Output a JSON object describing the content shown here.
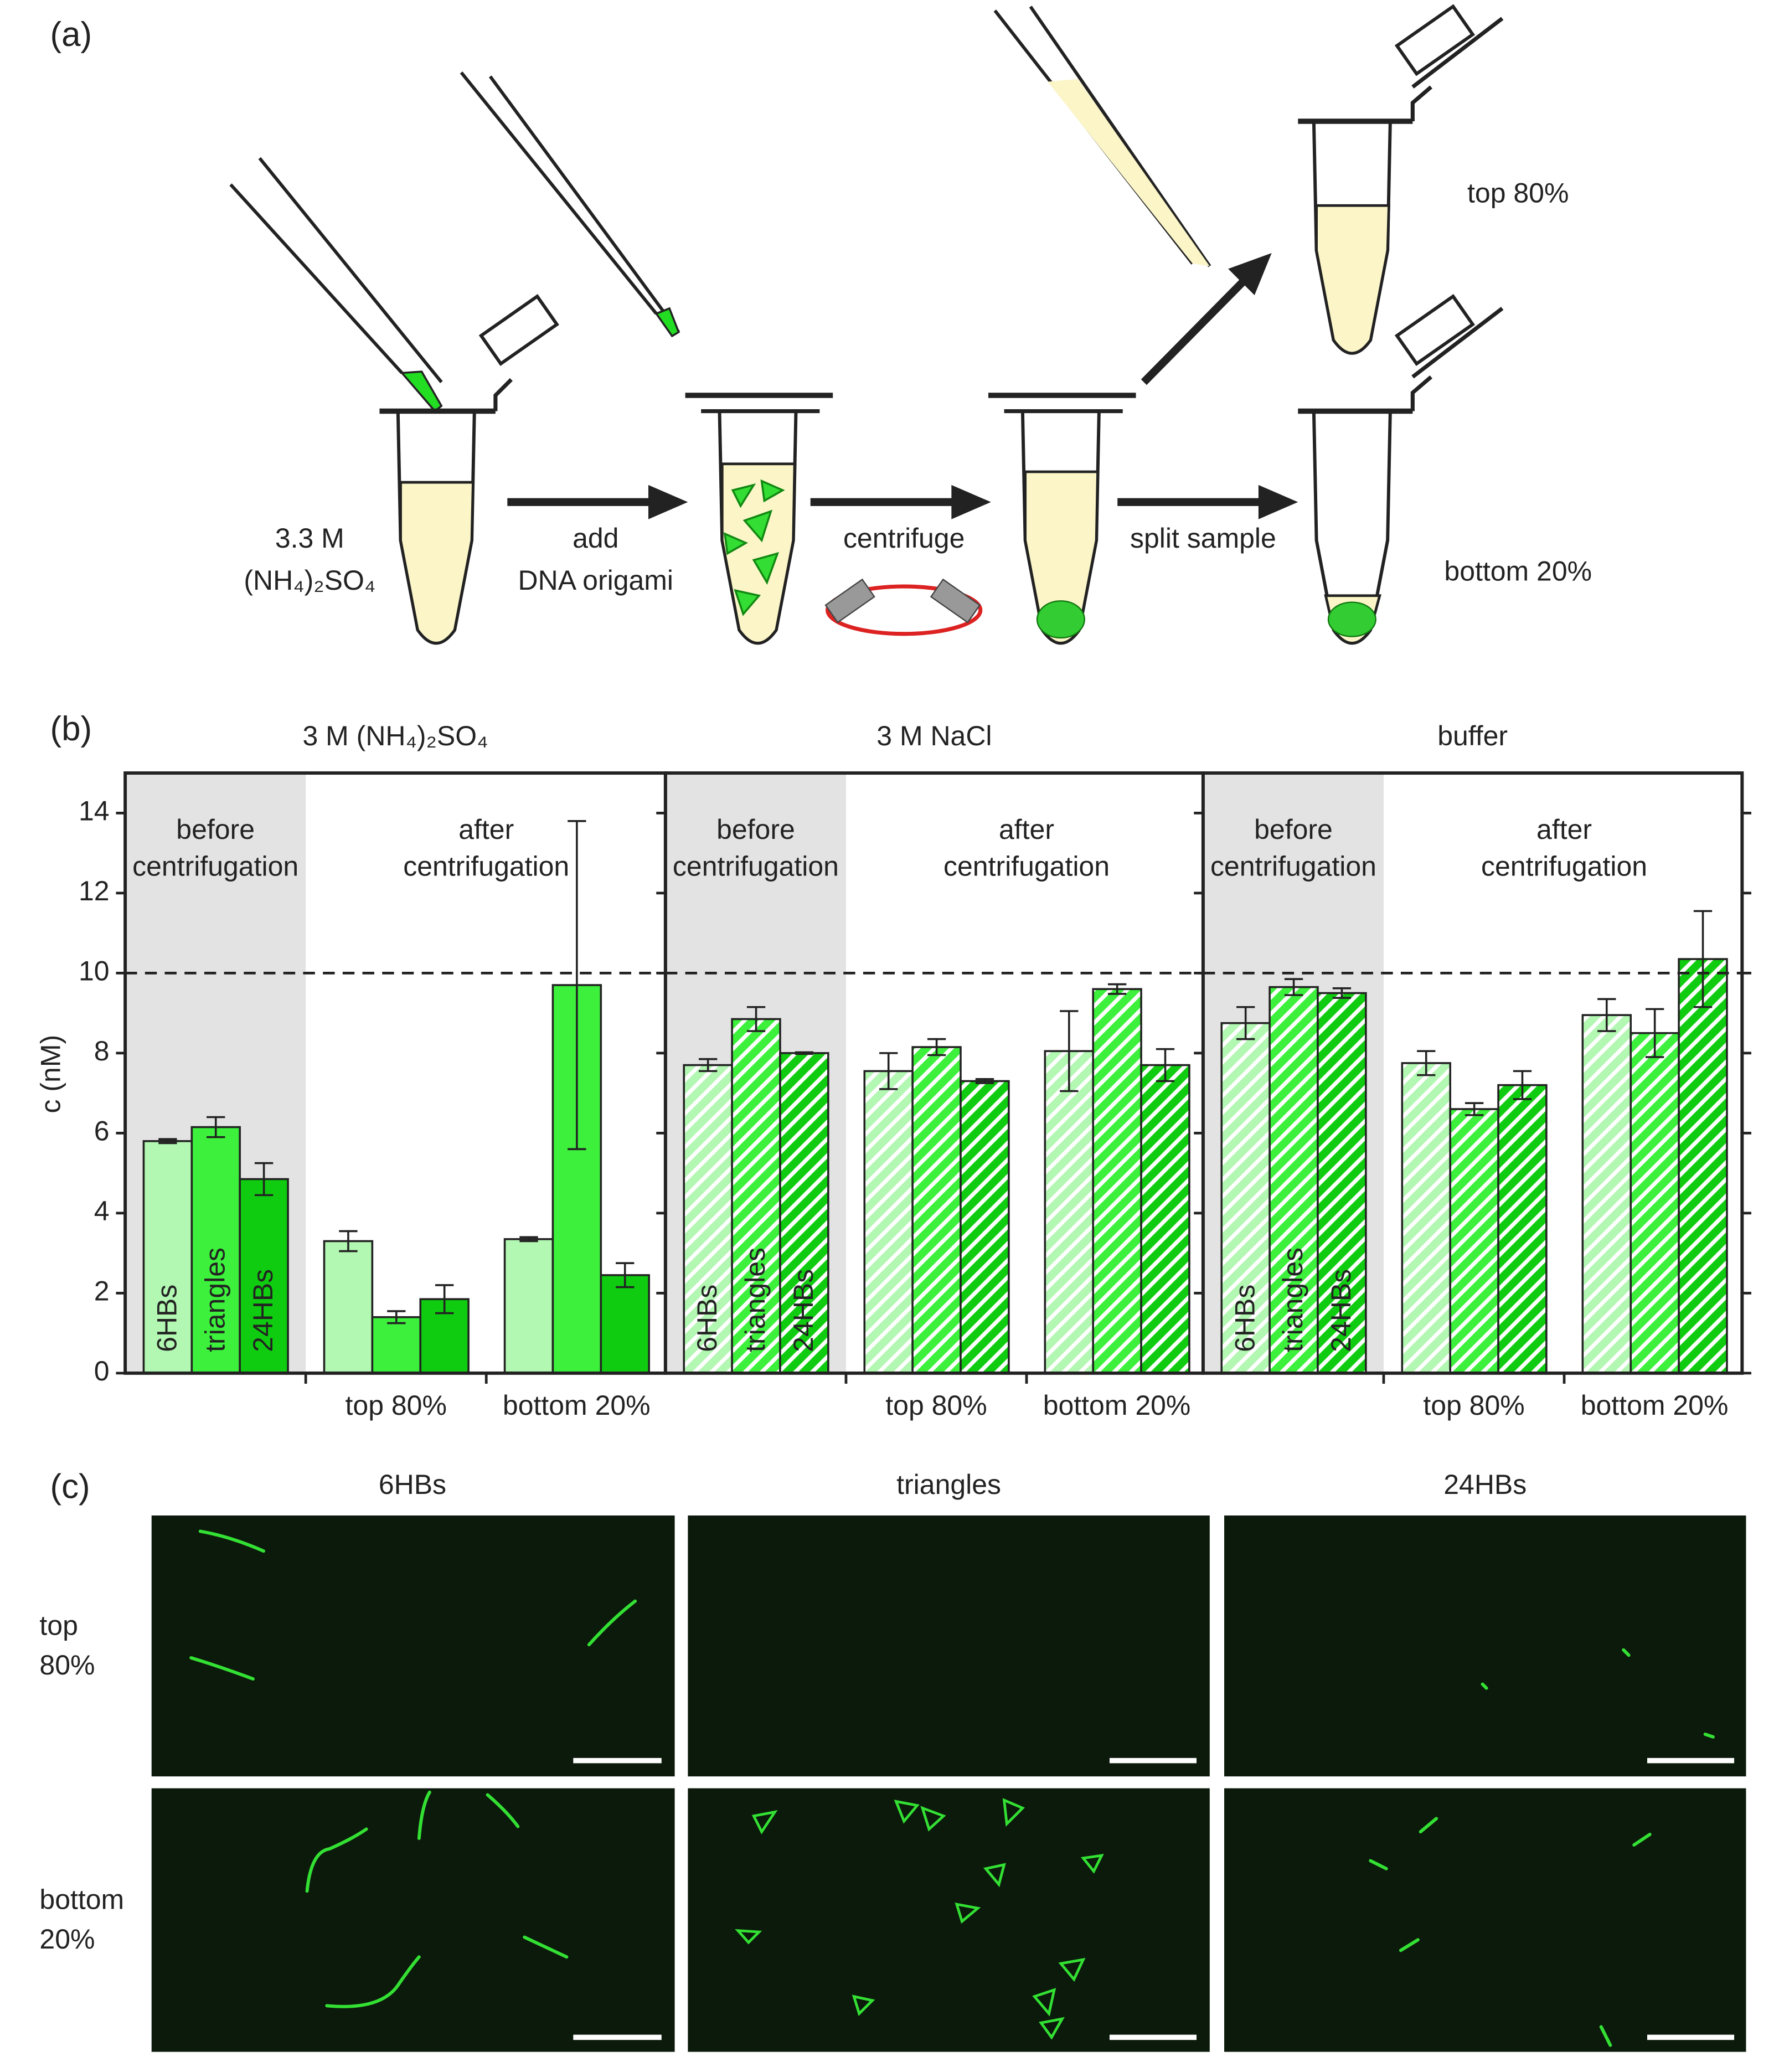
{
  "panel_a": {
    "label": "(a)",
    "salt": [
      "3.3 M",
      "(NH₄)₂SO₄"
    ],
    "step1": [
      "add",
      "DNA origami"
    ],
    "step2": "centrifuge",
    "step3": "split sample",
    "top": "top 80%",
    "bottom": "bottom 20%"
  },
  "panel_b": {
    "label": "(b)"
  },
  "chart_data": [
    {
      "type": "bar",
      "title": "3 M (NH₄)₂SO₄",
      "ylabel": "c (nM)",
      "ylim": [
        0,
        15
      ],
      "yticks": [
        0,
        2,
        4,
        6,
        8,
        10,
        12,
        14
      ],
      "categories": [
        null,
        "top 80%",
        "bottom 20%"
      ],
      "shaded_label": [
        "before",
        "centrifugation"
      ],
      "after_label": [
        "after",
        "centrifugation"
      ],
      "reference_line": 10,
      "hatch": false,
      "series": [
        {
          "name": "6HBs",
          "color": "#b2f7b2",
          "values": [
            5.8,
            3.3,
            3.35
          ],
          "errors": [
            0.05,
            0.25,
            0.05
          ]
        },
        {
          "name": "triangles",
          "color": "#3cf03c",
          "values": [
            6.15,
            1.4,
            9.7
          ],
          "errors": [
            0.25,
            0.15,
            4.1
          ]
        },
        {
          "name": "24HBs",
          "color": "#10cc10",
          "values": [
            4.85,
            1.85,
            2.45
          ],
          "errors": [
            0.4,
            0.35,
            0.3
          ]
        }
      ]
    },
    {
      "type": "bar",
      "title": "3 M NaCl",
      "categories": [
        null,
        "top 80%",
        "bottom 20%"
      ],
      "shaded_label": [
        "before",
        "centrifugation"
      ],
      "after_label": [
        "after",
        "centrifugation"
      ],
      "reference_line": 10,
      "hatch": true,
      "series": [
        {
          "name": "6HBs",
          "color": "#b2f7b2",
          "values": [
            7.7,
            7.55,
            8.05
          ],
          "errors": [
            0.15,
            0.45,
            1.0
          ]
        },
        {
          "name": "triangles",
          "color": "#3cf03c",
          "values": [
            8.85,
            8.15,
            9.6
          ],
          "errors": [
            0.3,
            0.2,
            0.12
          ]
        },
        {
          "name": "24HBs",
          "color": "#10cc10",
          "values": [
            8.0,
            7.3,
            7.7
          ],
          "errors": [
            0.02,
            0.05,
            0.4
          ]
        }
      ]
    },
    {
      "type": "bar",
      "title": "buffer",
      "categories": [
        null,
        "top 80%",
        "bottom 20%"
      ],
      "shaded_label": [
        "before",
        "centrifugation"
      ],
      "after_label": [
        "after",
        "centrifugation"
      ],
      "reference_line": 10,
      "hatch": true,
      "series": [
        {
          "name": "6HBs",
          "color": "#b2f7b2",
          "values": [
            8.75,
            7.75,
            8.95
          ],
          "errors": [
            0.4,
            0.3,
            0.4
          ]
        },
        {
          "name": "triangles",
          "color": "#3cf03c",
          "values": [
            9.65,
            6.6,
            8.5
          ],
          "errors": [
            0.2,
            0.15,
            0.6
          ]
        },
        {
          "name": "24HBs",
          "color": "#10cc10",
          "values": [
            9.5,
            7.2,
            10.35
          ],
          "errors": [
            0.12,
            0.35,
            1.2
          ]
        }
      ]
    }
  ],
  "panel_c": {
    "label": "(c)",
    "columns": [
      "6HBs",
      "triangles",
      "24HBs"
    ],
    "rows": [
      [
        "top",
        "80%"
      ],
      [
        "bottom",
        "20%"
      ]
    ]
  }
}
